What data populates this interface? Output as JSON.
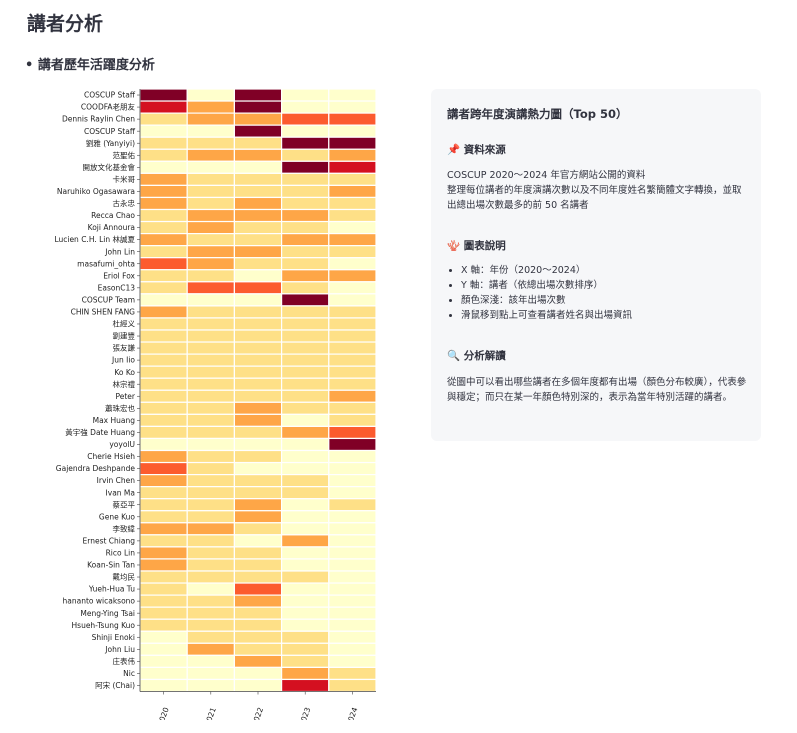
{
  "page_title": "講者分析",
  "section_title": "• 講者歷年活躍度分析",
  "info": {
    "title": "講者跨年度演講熱力圖（Top 50）",
    "source_heading": "📌 資料來源",
    "source_text": "COSCUP 2020～2024 年官方網站公開的資料\n整理每位講者的年度演講次數以及不同年度姓名繁簡體文字轉換，並取出總出場次數最多的前 50 名講者",
    "legend_heading": "🪸 圖表說明",
    "legend_items": [
      "X 軸：年份（2020～2024）",
      "Y 軸：講者（依總出場次數排序）",
      "顏色深淺：該年出場次數",
      "滑鼠移到點上可查看講者姓名與出場資訊"
    ],
    "analysis_heading": "🔍 分析解讀",
    "analysis_text": "從圖中可以看出哪些講者在多個年度都有出場（顏色分布較廣），代表參與穩定；而只在某一年顏色特別深的，表示為當年特別活躍的講者。"
  },
  "colors": {
    "0": "#ffffcc",
    "1": "#fee087",
    "2": "#fea647",
    "3": "#fc5b2e",
    "4": "#d41020",
    "5": "#800026",
    "grid": "#ffffff",
    "axis": "#444444"
  },
  "chart_data": {
    "type": "heatmap",
    "x": [
      "2020",
      "2021",
      "2022",
      "2023",
      "2024"
    ],
    "y": [
      "COSCUP Staff",
      "COODFA老朋友",
      "Dennis Raylin Chen",
      "COSCUP Staff",
      "劉雅 (Yanyiyi)",
      "范聖佑",
      "開放文化基金會",
      "卡米哥",
      "Naruhiko Ogasawara",
      "古永忠",
      "Recca Chao",
      "Koji Annoura",
      "Lucien C.H. Lin 林誠夏",
      "John Lin",
      "masafumi_ohta",
      "Eriol Fox",
      "EasonC13",
      "COSCUP Team",
      "CHIN SHEN FANG",
      "杜經义",
      "劉建豐",
      "張友謙",
      "Jun Iio",
      "Ko Ko",
      "林宗禮",
      "Peter",
      "蕭珠宏也",
      "Max Huang",
      "黃宇強 Date Huang",
      "yoyolU",
      "Cherie Hsieh",
      "Gajendra Deshpande",
      "Irvin Chen",
      "Ivan Ma",
      "蔡亞平",
      "Gene Kuo",
      "李致緯",
      "Ernest Chiang",
      "Rico Lin",
      "Koan-Sin Tan",
      "戴均民",
      "Yueh-Hua Tu",
      "hananto wicaksono",
      "Meng-Ying Tsai",
      "Hsueh-Tsung Kuo",
      "Shinji Enoki",
      "John Liu",
      "庄表伟",
      "Nic",
      "阿宋 (Chai)"
    ],
    "z": [
      [
        5,
        0,
        5,
        0,
        0
      ],
      [
        4,
        2,
        5,
        0,
        0
      ],
      [
        1,
        2,
        2,
        3,
        3
      ],
      [
        0,
        0,
        5,
        0,
        0
      ],
      [
        1,
        1,
        1,
        5,
        5
      ],
      [
        1,
        2,
        2,
        1,
        2
      ],
      [
        0,
        0,
        0,
        5,
        4
      ],
      [
        2,
        1,
        1,
        1,
        1
      ],
      [
        2,
        1,
        1,
        1,
        2
      ],
      [
        2,
        1,
        2,
        1,
        1
      ],
      [
        1,
        2,
        2,
        2,
        1
      ],
      [
        1,
        2,
        1,
        1,
        0
      ],
      [
        2,
        1,
        1,
        2,
        2
      ],
      [
        1,
        2,
        2,
        1,
        1
      ],
      [
        3,
        2,
        1,
        1,
        0
      ],
      [
        1,
        1,
        0,
        2,
        2
      ],
      [
        1,
        3,
        3,
        1,
        0
      ],
      [
        0,
        0,
        0,
        5,
        0
      ],
      [
        2,
        1,
        1,
        1,
        1
      ],
      [
        1,
        1,
        1,
        1,
        1
      ],
      [
        1,
        1,
        1,
        1,
        1
      ],
      [
        1,
        1,
        1,
        1,
        1
      ],
      [
        1,
        1,
        1,
        1,
        1
      ],
      [
        1,
        1,
        1,
        1,
        1
      ],
      [
        1,
        1,
        1,
        1,
        1
      ],
      [
        1,
        1,
        1,
        1,
        2
      ],
      [
        1,
        1,
        2,
        1,
        1
      ],
      [
        1,
        1,
        2,
        0,
        1
      ],
      [
        1,
        1,
        1,
        2,
        3
      ],
      [
        0,
        0,
        0,
        0,
        5
      ],
      [
        2,
        1,
        1,
        0,
        0
      ],
      [
        3,
        1,
        0,
        0,
        0
      ],
      [
        2,
        1,
        1,
        1,
        0
      ],
      [
        1,
        1,
        1,
        1,
        0
      ],
      [
        1,
        1,
        2,
        0,
        1
      ],
      [
        1,
        1,
        2,
        0,
        0
      ],
      [
        2,
        2,
        1,
        0,
        0
      ],
      [
        1,
        1,
        0,
        2,
        0
      ],
      [
        2,
        1,
        1,
        0,
        0
      ],
      [
        2,
        1,
        1,
        0,
        0
      ],
      [
        1,
        1,
        1,
        1,
        0
      ],
      [
        1,
        0,
        3,
        0,
        0
      ],
      [
        1,
        1,
        2,
        0,
        0
      ],
      [
        1,
        1,
        1,
        0,
        0
      ],
      [
        1,
        1,
        1,
        0,
        0
      ],
      [
        0,
        1,
        1,
        1,
        0
      ],
      [
        0,
        2,
        1,
        1,
        0
      ],
      [
        0,
        0,
        2,
        1,
        0
      ],
      [
        0,
        0,
        0,
        2,
        1
      ],
      [
        0,
        0,
        0,
        4,
        1
      ]
    ],
    "zlim": [
      0,
      5
    ],
    "title": "",
    "xlabel": "",
    "ylabel": ""
  }
}
